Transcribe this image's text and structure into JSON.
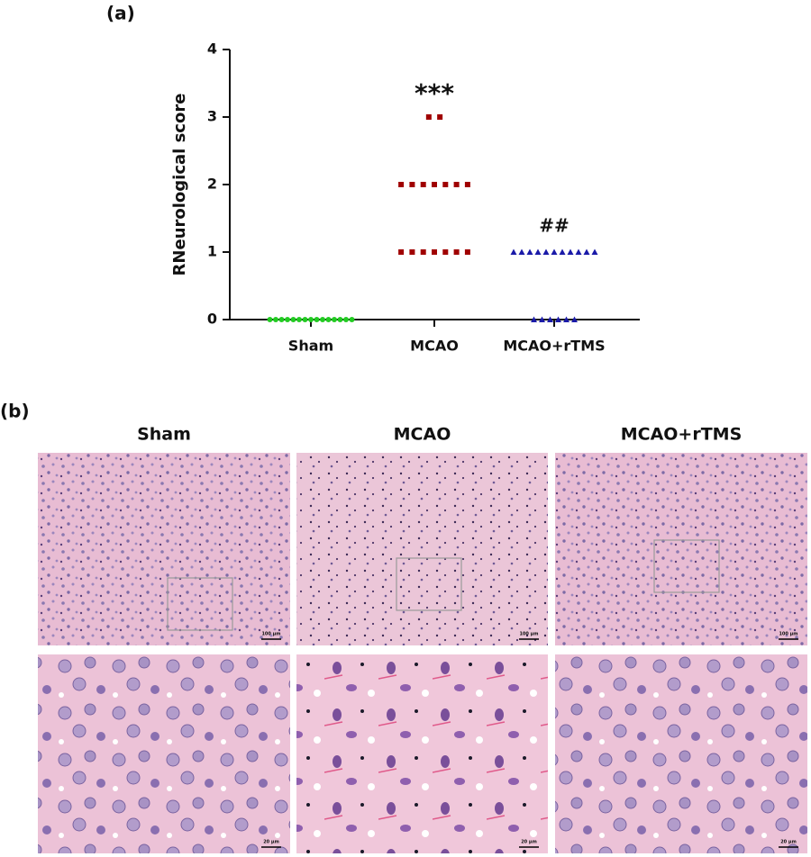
{
  "chart_data": {
    "type": "strip",
    "panel_label": "(a)",
    "ylabel": "RNeurological score",
    "categories": [
      "Sham",
      "MCAO",
      "MCAO+rTMS"
    ],
    "series": [
      {
        "name": "Sham",
        "color": "#22cc22",
        "marker": "circle",
        "values": [
          0,
          0,
          0,
          0,
          0,
          0,
          0,
          0,
          0,
          0,
          0,
          0,
          0,
          0,
          0
        ]
      },
      {
        "name": "MCAO",
        "color": "#a00000",
        "marker": "square",
        "values": [
          3,
          3,
          2,
          2,
          2,
          2,
          2,
          2,
          2,
          1,
          1,
          1,
          1,
          1,
          1,
          1
        ]
      },
      {
        "name": "MCAO+rTMS",
        "color": "#1a1aa8",
        "marker": "triangle",
        "values": [
          1,
          1,
          1,
          1,
          1,
          1,
          1,
          1,
          1,
          1,
          1,
          0,
          0,
          0,
          0,
          0,
          0
        ]
      }
    ],
    "annotations": [
      {
        "text": "***",
        "category": 1
      },
      {
        "text": "##",
        "category": 2
      }
    ],
    "ylim": [
      0,
      4
    ],
    "yticks": [
      0,
      1,
      2,
      3,
      4
    ]
  },
  "panel_b": {
    "label": "(b)",
    "columns": [
      "Sham",
      "MCAO",
      "MCAO+rTMS"
    ],
    "scale_bars": [
      "100 μm",
      "20 μm"
    ]
  }
}
